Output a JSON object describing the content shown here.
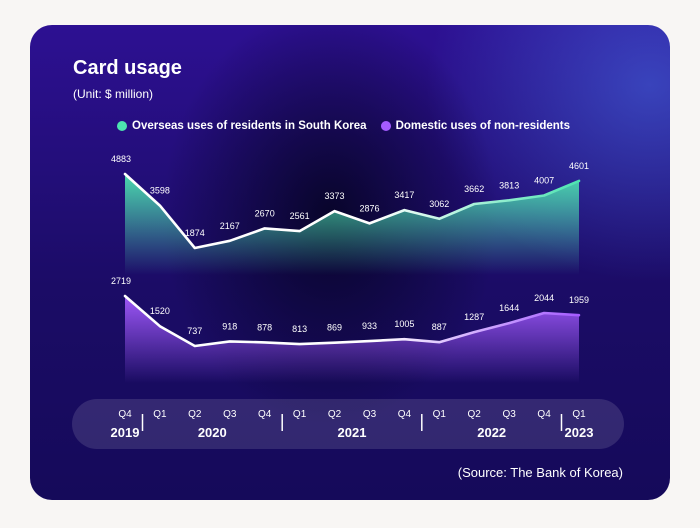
{
  "title": "Card usage",
  "unit": "(Unit: $ million)",
  "source": "(Source: The Bank of Korea)",
  "colors": {
    "overseas": "#4de3b0",
    "domestic": "#a45bff"
  },
  "legend": [
    {
      "label": "Overseas uses of residents in South Korea",
      "color": "#4de3b0"
    },
    {
      "label": "Domestic uses of non-residents",
      "color": "#a45bff"
    }
  ],
  "timeline": {
    "quarters": [
      "Q4",
      "Q1",
      "Q2",
      "Q3",
      "Q4",
      "Q1",
      "Q2",
      "Q3",
      "Q4",
      "Q1",
      "Q2",
      "Q3",
      "Q4",
      "Q1"
    ],
    "years": [
      "2019",
      "2020",
      "2021",
      "2022",
      "2023"
    ]
  },
  "chart_data": {
    "type": "area",
    "title": "Card usage",
    "subtitle": "(Unit: $ million)",
    "categories": [
      "2019 Q4",
      "2020 Q1",
      "2020 Q2",
      "2020 Q3",
      "2020 Q4",
      "2021 Q1",
      "2021 Q2",
      "2021 Q3",
      "2021 Q4",
      "2022 Q1",
      "2022 Q2",
      "2022 Q3",
      "2022 Q4",
      "2023 Q1"
    ],
    "series": [
      {
        "name": "Overseas uses of residents in South Korea",
        "values": [
          4883,
          3598,
          1874,
          2167,
          2670,
          2561,
          3373,
          2876,
          3417,
          3062,
          3662,
          3813,
          4007,
          4601
        ]
      },
      {
        "name": "Domestic uses of non-residents",
        "values": [
          2719,
          1520,
          737,
          918,
          878,
          813,
          869,
          933,
          1005,
          887,
          1287,
          1644,
          2044,
          1959
        ]
      }
    ],
    "legend": "top",
    "grid": false
  }
}
